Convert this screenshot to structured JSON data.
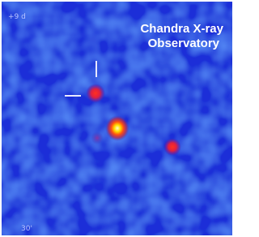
{
  "image": {
    "epoch_label": "+9 d",
    "caption": [
      "Chandra X-ray",
      "Observatory"
    ],
    "scale_label": "30'"
  }
}
